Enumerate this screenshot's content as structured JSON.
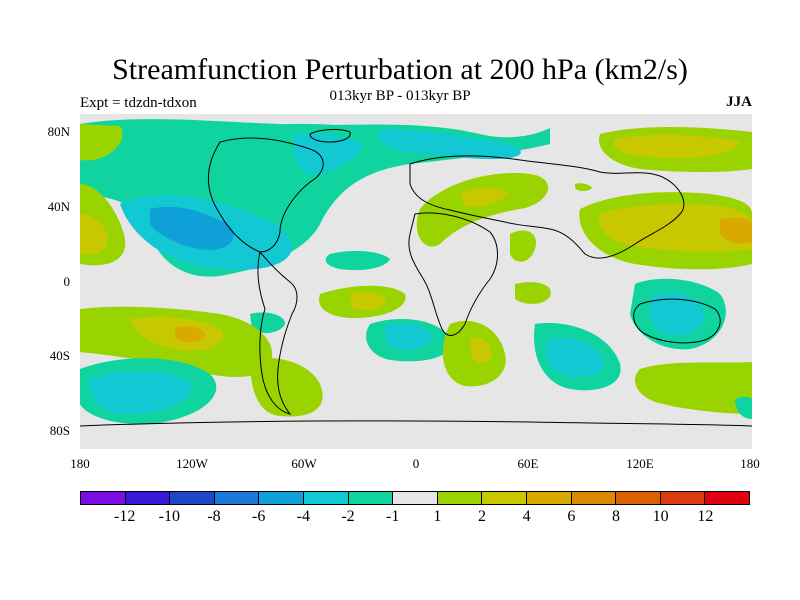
{
  "title": "Streamfunction Perturbation at 200 hPa (km2/s)",
  "subtitle": "013kyr BP - 013kyr BP",
  "left_label": "Expt = tdzdn-tdxon",
  "right_label": "JJA",
  "lat_ticks": [
    {
      "label": "80N",
      "value": 80
    },
    {
      "label": "40N",
      "value": 40
    },
    {
      "label": "0",
      "value": 0
    },
    {
      "label": "40S",
      "value": -40
    },
    {
      "label": "80S",
      "value": -80
    }
  ],
  "lon_ticks": [
    {
      "label": "180",
      "value": -180
    },
    {
      "label": "120W",
      "value": -120
    },
    {
      "label": "60W",
      "value": -60
    },
    {
      "label": "0",
      "value": 0
    },
    {
      "label": "60E",
      "value": 60
    },
    {
      "label": "120E",
      "value": 120
    },
    {
      "label": "180",
      "value": 180
    }
  ],
  "colorbar": {
    "colors": [
      "#7a0de0",
      "#3a18d8",
      "#1e46c8",
      "#1a78d6",
      "#10a0d8",
      "#12c8d2",
      "#10d4a0",
      "#e6e6e6",
      "#9ad400",
      "#c8c800",
      "#d8aa00",
      "#dc8800",
      "#dc6000",
      "#dc3a10",
      "#e00010"
    ],
    "labels": [
      "-12",
      "-10",
      "-8",
      "-6",
      "-4",
      "-2",
      "-1",
      "1",
      "2",
      "4",
      "6",
      "8",
      "10",
      "12"
    ]
  },
  "background_color": "#e6e6e6"
}
